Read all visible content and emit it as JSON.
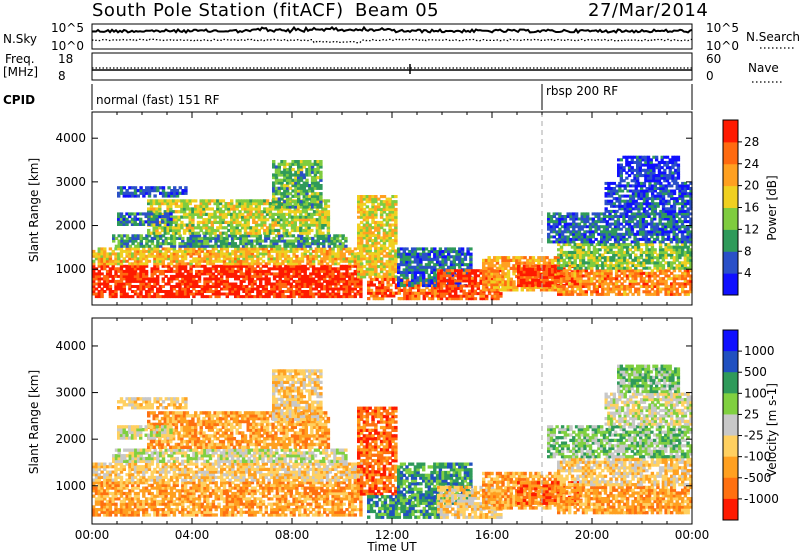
{
  "header": {
    "title": "South Pole Station (fitACF)",
    "beam": "Beam 05",
    "date": "27/Mar/2014"
  },
  "strip_nsky": {
    "left_label": "N.Sky",
    "right_label": "N.Search",
    "ticks_left": [
      "10^5",
      "10^0"
    ],
    "ticks_right": [
      "10^5",
      "10^0"
    ]
  },
  "strip_freq": {
    "left_label_1": "Freq.",
    "left_label_2": "[MHz]",
    "right_label": "Nave",
    "ticks_left": [
      "18",
      "8"
    ],
    "ticks_right": [
      "60",
      "0"
    ]
  },
  "strip_cpid": {
    "left_label": "CPID",
    "modes": [
      {
        "label": "normal (fast) 151 RF",
        "start_hour": 0
      },
      {
        "label": "rbsp 200 RF",
        "start_hour": 18
      }
    ]
  },
  "colors": {
    "power": [
      "#1010ff",
      "#2a50c8",
      "#2f9a5a",
      "#7fcc3f",
      "#f0d020",
      "#ffa020",
      "#ff6a10",
      "#ff1a00"
    ],
    "velocity": [
      "#ff1a00",
      "#ff7010",
      "#ffa020",
      "#ffd060",
      "#c8c8c8",
      "#80d040",
      "#2f9a5a",
      "#2050c0",
      "#1010ff"
    ]
  },
  "chart_data": [
    {
      "type": "heatmap",
      "name": "power",
      "ylabel": "Slant Range [km]",
      "xlabel": "",
      "x_range_hours": [
        0,
        24
      ],
      "ylim": [
        180,
        4600
      ],
      "yticks": [
        1000,
        2000,
        3000,
        4000
      ],
      "colorbar_label": "Power [dB]",
      "colorbar_range": [
        0,
        32
      ],
      "colorbar_ticks": [
        "4",
        "8",
        "12",
        "16",
        "20",
        "24",
        "28"
      ],
      "mode_change_hour": 18,
      "regions": [
        {
          "t0": 0,
          "t1": 10.8,
          "r0": 350,
          "r1": 1100,
          "level": 30
        },
        {
          "t0": 0,
          "t1": 10.8,
          "r0": 1100,
          "r1": 1500,
          "level": 20
        },
        {
          "t0": 0.8,
          "t1": 10.2,
          "r0": 1500,
          "r1": 1800,
          "level": 10
        },
        {
          "t0": 2.2,
          "t1": 9.5,
          "r0": 1800,
          "r1": 2600,
          "level": 16
        },
        {
          "t0": 1.0,
          "t1": 3.2,
          "r0": 2000,
          "r1": 2300,
          "level": 8
        },
        {
          "t0": 1.0,
          "t1": 3.8,
          "r0": 2650,
          "r1": 2900,
          "level": 6
        },
        {
          "t0": 7.2,
          "t1": 9.2,
          "r0": 2400,
          "r1": 3500,
          "level": 12
        },
        {
          "t0": 10.6,
          "t1": 12.2,
          "r0": 800,
          "r1": 2700,
          "level": 18
        },
        {
          "t0": 11.0,
          "t1": 14.0,
          "r0": 300,
          "r1": 800,
          "level": 26
        },
        {
          "t0": 12.2,
          "t1": 15.2,
          "r0": 600,
          "r1": 1500,
          "level": 7
        },
        {
          "t0": 13.8,
          "t1": 16.4,
          "r0": 300,
          "r1": 1000,
          "level": 28
        },
        {
          "t0": 15.6,
          "t1": 18.8,
          "r0": 500,
          "r1": 1300,
          "level": 22
        },
        {
          "t0": 17.0,
          "t1": 19.6,
          "r0": 600,
          "r1": 1100,
          "level": 30
        },
        {
          "t0": 18.6,
          "t1": 24,
          "r0": 400,
          "r1": 1000,
          "level": 24
        },
        {
          "t0": 18.6,
          "t1": 24,
          "r0": 1000,
          "r1": 1600,
          "level": 14
        },
        {
          "t0": 18.2,
          "t1": 24,
          "r0": 1600,
          "r1": 2300,
          "level": 7
        },
        {
          "t0": 20.5,
          "t1": 24,
          "r0": 2300,
          "r1": 3000,
          "level": 5
        },
        {
          "t0": 21.0,
          "t1": 23.5,
          "r0": 3000,
          "r1": 3600,
          "level": 4
        }
      ]
    },
    {
      "type": "heatmap",
      "name": "velocity",
      "ylabel": "Slant Range [km]",
      "xlabel": "Time UT",
      "x_range_hours": [
        0,
        24
      ],
      "ylim": [
        180,
        4600
      ],
      "yticks": [
        1000,
        2000,
        3000,
        4000
      ],
      "xticks": [
        "00:00",
        "04:00",
        "08:00",
        "12:00",
        "16:00",
        "20:00",
        "00:00"
      ],
      "colorbar_label": "Velocity [m s-1]",
      "colorbar_ticks": [
        "1000",
        "500",
        "100",
        "25",
        "-25",
        "-100",
        "-500",
        "-1000"
      ],
      "mode_change_hour": 18,
      "regions": [
        {
          "t0": 0,
          "t1": 10.8,
          "r0": 350,
          "r1": 1100,
          "level": 2
        },
        {
          "t0": 0,
          "t1": 10.8,
          "r0": 1100,
          "r1": 1500,
          "level": 3
        },
        {
          "t0": 0.8,
          "t1": 10.2,
          "r0": 1500,
          "r1": 1800,
          "level": 4
        },
        {
          "t0": 2.2,
          "t1": 9.5,
          "r0": 1800,
          "r1": 2600,
          "level": 2
        },
        {
          "t0": 1.0,
          "t1": 3.2,
          "r0": 2000,
          "r1": 2300,
          "level": 4
        },
        {
          "t0": 1.0,
          "t1": 3.8,
          "r0": 2650,
          "r1": 2900,
          "level": 3
        },
        {
          "t0": 7.2,
          "t1": 9.2,
          "r0": 2400,
          "r1": 3500,
          "level": 3
        },
        {
          "t0": 10.6,
          "t1": 12.2,
          "r0": 800,
          "r1": 2700,
          "level": 1
        },
        {
          "t0": 11.0,
          "t1": 14.0,
          "r0": 300,
          "r1": 800,
          "level": 6
        },
        {
          "t0": 12.2,
          "t1": 15.2,
          "r0": 600,
          "r1": 1500,
          "level": 6
        },
        {
          "t0": 13.8,
          "t1": 16.4,
          "r0": 300,
          "r1": 1000,
          "level": 3
        },
        {
          "t0": 15.6,
          "t1": 18.8,
          "r0": 500,
          "r1": 1300,
          "level": 2
        },
        {
          "t0": 17.0,
          "t1": 19.6,
          "r0": 600,
          "r1": 1100,
          "level": 1
        },
        {
          "t0": 18.6,
          "t1": 24,
          "r0": 400,
          "r1": 1000,
          "level": 2
        },
        {
          "t0": 18.6,
          "t1": 24,
          "r0": 1000,
          "r1": 1600,
          "level": 3
        },
        {
          "t0": 18.2,
          "t1": 24,
          "r0": 1600,
          "r1": 2300,
          "level": 5
        },
        {
          "t0": 20.5,
          "t1": 24,
          "r0": 2300,
          "r1": 3000,
          "level": 4
        },
        {
          "t0": 21.0,
          "t1": 23.5,
          "r0": 3000,
          "r1": 3600,
          "level": 5
        }
      ]
    }
  ]
}
